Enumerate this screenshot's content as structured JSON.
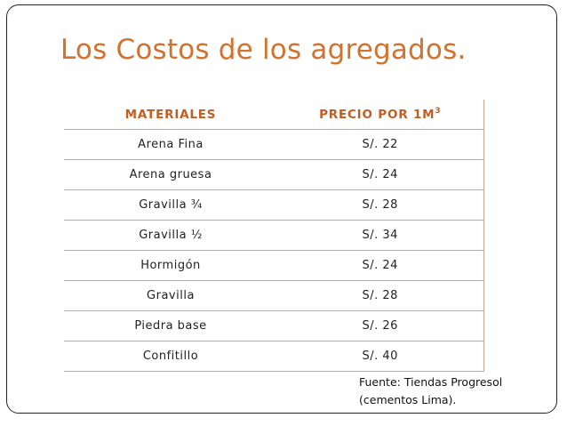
{
  "slide": {
    "title": "Los Costos de los agregados."
  },
  "table": {
    "headers": {
      "material": "MATERIALES",
      "price_base": "PRECIO POR 1M",
      "price_exponent": "3"
    },
    "rows": [
      {
        "material": "Arena  Fina",
        "price": "S/. 22"
      },
      {
        "material": "Arena gruesa",
        "price": "S/. 24"
      },
      {
        "material": "Gravilla ¾",
        "price": "S/. 28"
      },
      {
        "material": "Gravilla ½",
        "price": "S/. 34"
      },
      {
        "material": "Hormigón",
        "price": "S/. 24"
      },
      {
        "material": "Gravilla",
        "price": "S/. 28"
      },
      {
        "material": "Piedra base",
        "price": "S/. 26"
      },
      {
        "material": "Confitillo",
        "price": "S/. 40"
      }
    ]
  },
  "source": {
    "line1": "Fuente: Tiendas Progresol",
    "line2": "(cementos Lima)."
  },
  "colors": {
    "title": "#d2722e",
    "header": "#c15e24",
    "rule": "#c9a88d"
  }
}
